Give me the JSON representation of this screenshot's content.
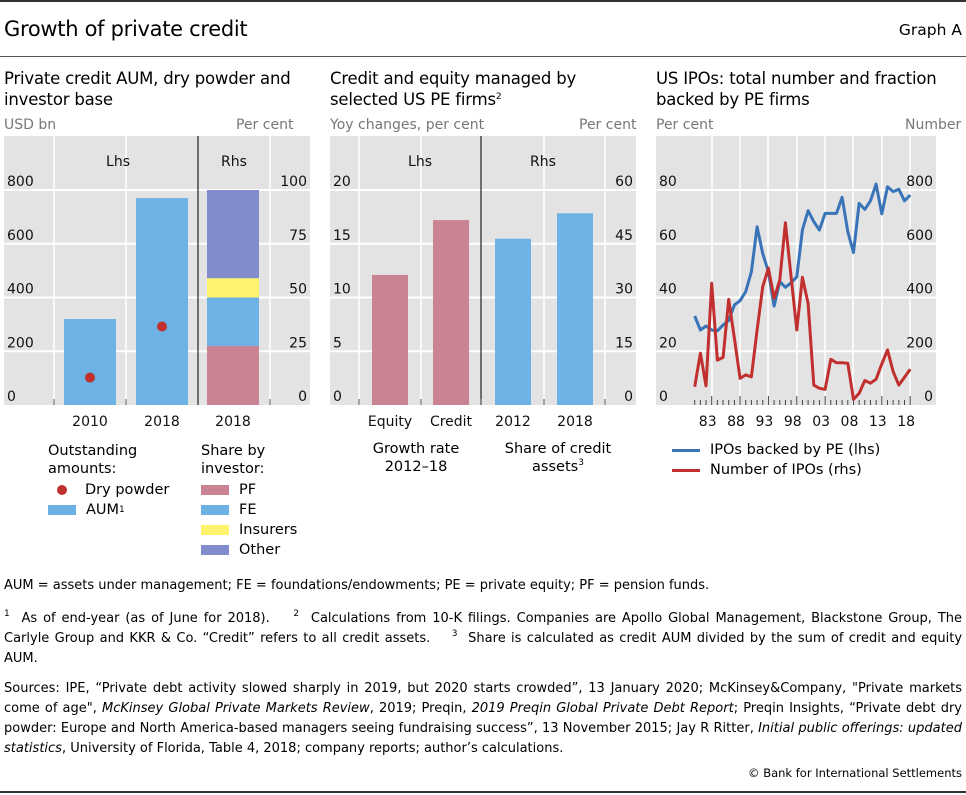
{
  "header": {
    "title": "Growth of private credit",
    "graph_id": "Graph A"
  },
  "colors": {
    "plot_bg": "#e3e3e3",
    "grid": "#ffffff",
    "aum_blue": "#6cb2e4",
    "dry_powder_red": "#c0302f",
    "pf_pink": "#c98393",
    "fe_blue": "#6cb2e4",
    "insurers_yellow": "#fff36e",
    "other_purple": "#828ccc",
    "line_blue": "#3a74b8",
    "line_red": "#c12f2f"
  },
  "panels": [
    {
      "title": "Private credit AUM, dry powder and investor base",
      "unit_left": "USD bn",
      "unit_right": "Per cent",
      "section_labels": [
        "Lhs",
        "Rhs"
      ],
      "legend": {
        "group1_title": "Outstanding amounts:",
        "dry_powder": "Dry powder",
        "aum": "AUM",
        "aum_sup": "1",
        "group2_title": "Share by investor:",
        "items": [
          "PF",
          "FE",
          "Insurers",
          "Other"
        ]
      }
    },
    {
      "title": "Credit and equity managed by selected US PE firms",
      "title_sup": "2",
      "unit_left": "Yoy changes, per cent",
      "unit_right": "Per cent",
      "section_labels": [
        "Lhs",
        "Rhs"
      ],
      "group_labels": [
        "Growth rate 2012–18",
        "Share of credit assets"
      ],
      "group_label_sup": "3"
    },
    {
      "title": "US IPOs: total number and fraction backed by PE firms",
      "unit_left": "Per cent",
      "unit_right": "Number",
      "legend": [
        "IPOs backed by PE (lhs)",
        "Number of IPOs (rhs)"
      ]
    }
  ],
  "chart_data": [
    {
      "type": "bar",
      "title": "Private credit AUM, dry powder and investor base",
      "ylabel_left": "USD bn",
      "ylabel_right": "Per cent",
      "ylim_left": [
        0,
        800
      ],
      "yticks_left": [
        0,
        200,
        400,
        600,
        800
      ],
      "ylim_right": [
        0,
        100
      ],
      "yticks_right": [
        0,
        25,
        50,
        75,
        100
      ],
      "grid": true,
      "categories": [
        "2010",
        "2018",
        "2018"
      ],
      "series": [
        {
          "name": "AUM",
          "axis": "left",
          "type": "bar",
          "categories": [
            "2010",
            "2018"
          ],
          "values": [
            320,
            770
          ]
        },
        {
          "name": "Dry powder",
          "axis": "left",
          "type": "dot",
          "categories": [
            "2010",
            "2018"
          ],
          "values": [
            102,
            292
          ]
        },
        {
          "name": "PF",
          "axis": "right",
          "type": "stacked-bar",
          "categories": [
            "2018"
          ],
          "values": [
            27.5
          ]
        },
        {
          "name": "FE",
          "axis": "right",
          "type": "stacked-bar",
          "categories": [
            "2018"
          ],
          "values": [
            22.5
          ]
        },
        {
          "name": "Insurers",
          "axis": "right",
          "type": "stacked-bar",
          "categories": [
            "2018"
          ],
          "values": [
            9
          ]
        },
        {
          "name": "Other",
          "axis": "right",
          "type": "stacked-bar",
          "categories": [
            "2018"
          ],
          "values": [
            41
          ]
        }
      ]
    },
    {
      "type": "bar",
      "title": "Credit and equity managed by selected US PE firms",
      "ylabel_left": "Yoy changes, per cent",
      "ylabel_right": "Per cent",
      "ylim_left": [
        0,
        20
      ],
      "yticks_left": [
        0,
        5,
        10,
        15,
        20
      ],
      "ylim_right": [
        0,
        60
      ],
      "yticks_right": [
        0,
        15,
        30,
        45,
        60
      ],
      "grid": true,
      "categories": [
        "Equity",
        "Credit",
        "2012",
        "2018"
      ],
      "series": [
        {
          "name": "Growth rate 2012–18",
          "axis": "left",
          "categories": [
            "Equity",
            "Credit"
          ],
          "values": [
            12.1,
            17.2
          ]
        },
        {
          "name": "Share of credit assets",
          "axis": "right",
          "categories": [
            "2012",
            "2018"
          ],
          "values": [
            46.4,
            53.5
          ]
        }
      ]
    },
    {
      "type": "line",
      "title": "US IPOs: total number and fraction backed by PE firms",
      "ylabel_left": "Per cent",
      "ylabel_right": "Number",
      "ylim_left": [
        0,
        80
      ],
      "yticks_left": [
        0,
        20,
        40,
        60,
        80
      ],
      "ylim_right": [
        0,
        800
      ],
      "yticks_right": [
        0,
        200,
        400,
        600,
        800
      ],
      "xlim": [
        1980,
        2018
      ],
      "xtick_labels": [
        "83",
        "88",
        "93",
        "98",
        "03",
        "08",
        "13",
        "18"
      ],
      "xtick_years": [
        1983,
        1988,
        1993,
        1998,
        2003,
        2008,
        2013,
        2018
      ],
      "grid": true,
      "legend_position": "bottom",
      "x": [
        1980,
        1981,
        1982,
        1983,
        1984,
        1985,
        1986,
        1987,
        1988,
        1989,
        1990,
        1991,
        1992,
        1993,
        1994,
        1995,
        1996,
        1997,
        1998,
        1999,
        2000,
        2001,
        2002,
        2003,
        2004,
        2005,
        2006,
        2007,
        2008,
        2009,
        2010,
        2011,
        2012,
        2013,
        2014,
        2015,
        2016,
        2017,
        2018
      ],
      "series": [
        {
          "name": "IPOs backed by PE (lhs)",
          "axis": "left",
          "values": [
            33.1,
            27.9,
            29.4,
            27.9,
            27.6,
            29.8,
            31.4,
            37.2,
            38.8,
            42.2,
            49.6,
            66.3,
            56.4,
            49.6,
            36.8,
            45.9,
            43.8,
            45.5,
            47.7,
            65.1,
            72.3,
            68.2,
            65.1,
            71.3,
            71.3,
            71.3,
            77.3,
            64.5,
            56.7,
            75.0,
            72.8,
            76.0,
            82.2,
            71.1,
            81.2,
            79.4,
            80.3,
            76.0,
            78.1
          ]
        },
        {
          "name": "Number of IPOs (rhs)",
          "axis": "right",
          "values": [
            68,
            193,
            71,
            453,
            167,
            177,
            393,
            248,
            99,
            112,
            105,
            279,
            440,
            509,
            397,
            465,
            678,
            477,
            279,
            475,
            378,
            74,
            62,
            58,
            170,
            157,
            157,
            155,
            21,
            43,
            91,
            81,
            96,
            153,
            205,
            124,
            74,
            103,
            133
          ]
        }
      ]
    }
  ],
  "notes": {
    "abbreviations": "AUM = assets under management; FE = foundations/endowments; PE = private equity; PF = pension funds.",
    "fn1_mark": "1",
    "fn1": "As of end-year (as of June for 2018).",
    "fn2_mark": "2",
    "fn2": "Calculations from 10-K filings. Companies are Apollo Global Management, Blackstone Group, The Carlyle Group and KKR & Co. “Credit” refers to all credit assets.",
    "fn3_mark": "3",
    "fn3": "Share is calculated as credit AUM divided by the sum of credit and equity AUM.",
    "sources_1": "Sources: IPE, “Private debt activity slowed sharply in 2019, but 2020 starts crowded”, 13 January 2020; McKinsey&Company, \"Private markets come of age\", ",
    "sources_i1": "McKinsey Global Private Markets Review",
    "sources_2": ", 2019; Preqin, ",
    "sources_i2": "2019 Preqin Global Private Debt Report",
    "sources_3": "; Preqin Insights, “Private debt dry powder: Europe and North America-based managers seeing fundraising success”, 13 November 2015; Jay R Ritter, ",
    "sources_i3": "Initial public offerings: updated statistics",
    "sources_4": ", University of Florida, Table 4, 2018; company reports; author’s calculations.",
    "copyright": "© Bank for International Settlements"
  }
}
